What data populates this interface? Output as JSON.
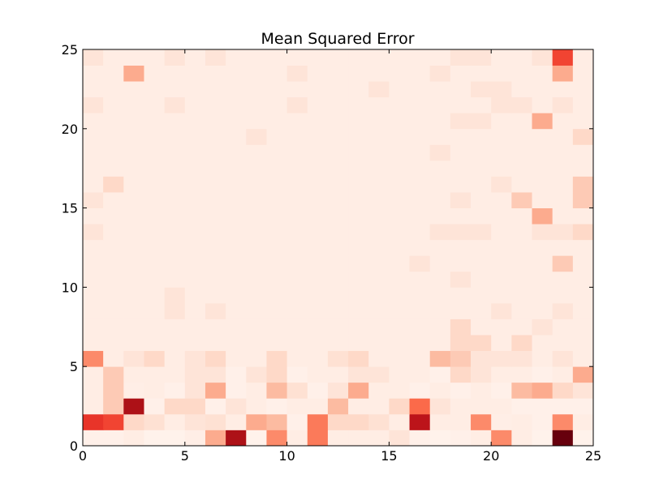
{
  "chart_data": {
    "type": "heatmap",
    "title": "Mean Squared Error",
    "xlabel": "",
    "ylabel": "",
    "xlim": [
      0,
      25
    ],
    "ylim": [
      0,
      25
    ],
    "xticks": [
      0,
      5,
      10,
      15,
      20,
      25
    ],
    "yticks": [
      0,
      5,
      10,
      15,
      20,
      25
    ],
    "colormap": "Reds",
    "grid": false,
    "z_rows_bottom_to_top": [
      [
        0.03,
        0.03,
        0.05,
        0.02,
        0.02,
        0.04,
        0.3,
        0.85,
        0.02,
        0.4,
        0.05,
        0.45,
        0.05,
        0.05,
        0.05,
        0.1,
        0.03,
        0.02,
        0.03,
        0.05,
        0.4,
        0.05,
        0.02,
        1.0,
        0.02
      ],
      [
        0.65,
        0.6,
        0.15,
        0.12,
        0.05,
        0.1,
        0.12,
        0.05,
        0.3,
        0.25,
        0.03,
        0.45,
        0.15,
        0.15,
        0.12,
        0.05,
        0.8,
        0.05,
        0.05,
        0.4,
        0.04,
        0.05,
        0.03,
        0.4,
        0.05
      ],
      [
        0.05,
        0.2,
        0.85,
        0.03,
        0.15,
        0.15,
        0.03,
        0.1,
        0.05,
        0.03,
        0.05,
        0.05,
        0.25,
        0.05,
        0.05,
        0.15,
        0.5,
        0.1,
        0.05,
        0.05,
        0.05,
        0.03,
        0.03,
        0.03,
        0.03
      ],
      [
        0.05,
        0.2,
        0.04,
        0.05,
        0.03,
        0.1,
        0.3,
        0.03,
        0.05,
        0.25,
        0.12,
        0.03,
        0.1,
        0.3,
        0.05,
        0.05,
        0.03,
        0.05,
        0.03,
        0.05,
        0.03,
        0.25,
        0.3,
        0.15,
        0.1
      ],
      [
        0.05,
        0.2,
        0.05,
        0.05,
        0.05,
        0.1,
        0.1,
        0.03,
        0.1,
        0.15,
        0.03,
        0.05,
        0.05,
        0.1,
        0.1,
        0.05,
        0.05,
        0.03,
        0.15,
        0.1,
        0.05,
        0.05,
        0.03,
        0.05,
        0.3
      ],
      [
        0.4,
        0.05,
        0.1,
        0.15,
        0.05,
        0.1,
        0.15,
        0.05,
        0.05,
        0.15,
        0.05,
        0.05,
        0.12,
        0.15,
        0.05,
        0.05,
        0.05,
        0.25,
        0.2,
        0.1,
        0.1,
        0.1,
        0.05,
        0.1,
        0.05
      ],
      [
        0.05,
        0.05,
        0.05,
        0.05,
        0.05,
        0.05,
        0.05,
        0.05,
        0.05,
        0.05,
        0.05,
        0.05,
        0.05,
        0.05,
        0.05,
        0.05,
        0.05,
        0.05,
        0.15,
        0.15,
        0.05,
        0.15,
        0.05,
        0.05,
        0.05
      ],
      [
        0.05,
        0.05,
        0.05,
        0.05,
        0.05,
        0.05,
        0.05,
        0.05,
        0.05,
        0.05,
        0.05,
        0.05,
        0.05,
        0.05,
        0.05,
        0.05,
        0.05,
        0.05,
        0.15,
        0.05,
        0.05,
        0.05,
        0.1,
        0.05,
        0.05
      ],
      [
        0.05,
        0.05,
        0.05,
        0.05,
        0.1,
        0.05,
        0.1,
        0.05,
        0.05,
        0.05,
        0.05,
        0.05,
        0.05,
        0.05,
        0.05,
        0.05,
        0.05,
        0.05,
        0.05,
        0.05,
        0.1,
        0.05,
        0.05,
        0.1,
        0.05
      ],
      [
        0.05,
        0.05,
        0.05,
        0.05,
        0.1,
        0.05,
        0.05,
        0.05,
        0.05,
        0.05,
        0.05,
        0.05,
        0.05,
        0.05,
        0.05,
        0.05,
        0.05,
        0.05,
        0.05,
        0.05,
        0.05,
        0.05,
        0.05,
        0.05,
        0.05
      ],
      [
        0.05,
        0.05,
        0.05,
        0.05,
        0.05,
        0.05,
        0.05,
        0.05,
        0.05,
        0.05,
        0.05,
        0.05,
        0.05,
        0.05,
        0.05,
        0.05,
        0.05,
        0.05,
        0.1,
        0.05,
        0.05,
        0.05,
        0.05,
        0.05,
        0.05
      ],
      [
        0.05,
        0.05,
        0.05,
        0.05,
        0.05,
        0.05,
        0.05,
        0.05,
        0.05,
        0.05,
        0.05,
        0.05,
        0.05,
        0.05,
        0.05,
        0.05,
        0.1,
        0.05,
        0.05,
        0.05,
        0.05,
        0.05,
        0.05,
        0.2,
        0.05
      ],
      [
        0.05,
        0.05,
        0.05,
        0.05,
        0.05,
        0.05,
        0.05,
        0.05,
        0.05,
        0.05,
        0.05,
        0.05,
        0.05,
        0.05,
        0.05,
        0.05,
        0.05,
        0.05,
        0.05,
        0.05,
        0.05,
        0.05,
        0.05,
        0.05,
        0.05
      ],
      [
        0.1,
        0.05,
        0.05,
        0.05,
        0.05,
        0.05,
        0.05,
        0.05,
        0.05,
        0.05,
        0.05,
        0.05,
        0.05,
        0.05,
        0.05,
        0.05,
        0.05,
        0.1,
        0.1,
        0.1,
        0.05,
        0.05,
        0.1,
        0.1,
        0.15
      ],
      [
        0.05,
        0.05,
        0.05,
        0.05,
        0.05,
        0.05,
        0.05,
        0.05,
        0.05,
        0.05,
        0.05,
        0.05,
        0.05,
        0.05,
        0.05,
        0.05,
        0.05,
        0.05,
        0.05,
        0.05,
        0.05,
        0.05,
        0.3,
        0.05,
        0.05
      ],
      [
        0.1,
        0.05,
        0.05,
        0.05,
        0.05,
        0.05,
        0.05,
        0.05,
        0.05,
        0.05,
        0.05,
        0.05,
        0.05,
        0.05,
        0.05,
        0.05,
        0.05,
        0.05,
        0.1,
        0.05,
        0.05,
        0.2,
        0.05,
        0.05,
        0.2
      ],
      [
        0.05,
        0.15,
        0.05,
        0.05,
        0.05,
        0.05,
        0.05,
        0.05,
        0.05,
        0.05,
        0.05,
        0.05,
        0.05,
        0.05,
        0.05,
        0.05,
        0.05,
        0.05,
        0.05,
        0.05,
        0.1,
        0.05,
        0.05,
        0.05,
        0.2
      ],
      [
        0.05,
        0.05,
        0.05,
        0.05,
        0.05,
        0.05,
        0.05,
        0.05,
        0.05,
        0.05,
        0.05,
        0.05,
        0.05,
        0.05,
        0.05,
        0.05,
        0.05,
        0.05,
        0.05,
        0.05,
        0.05,
        0.05,
        0.05,
        0.05,
        0.05
      ],
      [
        0.05,
        0.05,
        0.05,
        0.05,
        0.05,
        0.05,
        0.05,
        0.05,
        0.05,
        0.05,
        0.05,
        0.05,
        0.05,
        0.05,
        0.05,
        0.05,
        0.05,
        0.1,
        0.05,
        0.05,
        0.05,
        0.05,
        0.05,
        0.05,
        0.05
      ],
      [
        0.05,
        0.05,
        0.05,
        0.05,
        0.05,
        0.05,
        0.05,
        0.05,
        0.1,
        0.05,
        0.05,
        0.05,
        0.05,
        0.05,
        0.05,
        0.05,
        0.05,
        0.05,
        0.05,
        0.05,
        0.05,
        0.05,
        0.05,
        0.05,
        0.15
      ],
      [
        0.05,
        0.05,
        0.05,
        0.05,
        0.05,
        0.05,
        0.05,
        0.05,
        0.05,
        0.05,
        0.05,
        0.05,
        0.05,
        0.05,
        0.05,
        0.05,
        0.05,
        0.05,
        0.1,
        0.1,
        0.05,
        0.05,
        0.3,
        0.05,
        0.05
      ],
      [
        0.1,
        0.05,
        0.05,
        0.05,
        0.1,
        0.05,
        0.05,
        0.05,
        0.05,
        0.05,
        0.1,
        0.05,
        0.05,
        0.05,
        0.05,
        0.05,
        0.05,
        0.05,
        0.05,
        0.05,
        0.1,
        0.1,
        0.05,
        0.1,
        0.05
      ],
      [
        0.05,
        0.05,
        0.05,
        0.05,
        0.05,
        0.05,
        0.05,
        0.05,
        0.05,
        0.05,
        0.05,
        0.05,
        0.05,
        0.05,
        0.1,
        0.05,
        0.05,
        0.05,
        0.05,
        0.1,
        0.1,
        0.05,
        0.05,
        0.05,
        0.05
      ],
      [
        0.05,
        0.05,
        0.3,
        0.05,
        0.05,
        0.05,
        0.05,
        0.05,
        0.05,
        0.05,
        0.1,
        0.05,
        0.05,
        0.05,
        0.05,
        0.05,
        0.05,
        0.1,
        0.05,
        0.05,
        0.05,
        0.05,
        0.05,
        0.3,
        0.05
      ],
      [
        0.1,
        0.05,
        0.05,
        0.05,
        0.1,
        0.05,
        0.1,
        0.05,
        0.05,
        0.05,
        0.05,
        0.05,
        0.05,
        0.05,
        0.05,
        0.05,
        0.05,
        0.05,
        0.1,
        0.1,
        0.05,
        0.05,
        0.1,
        0.6,
        0.05
      ]
    ]
  }
}
